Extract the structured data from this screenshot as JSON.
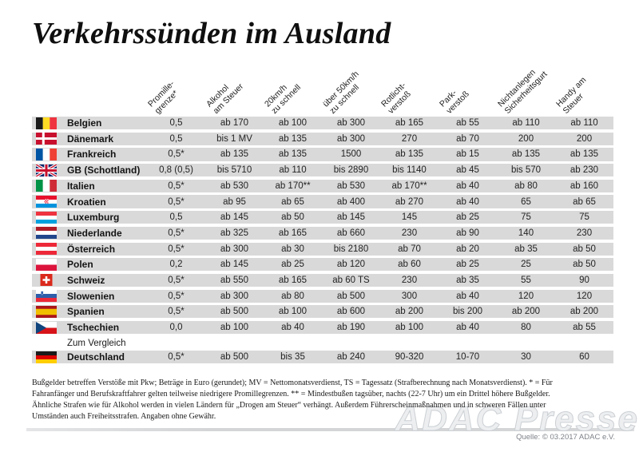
{
  "title": "Verkehrssünden im Ausland",
  "table": {
    "columns": [
      {
        "id": "promillegrenze",
        "lines": [
          "Promille-",
          "grenze*"
        ]
      },
      {
        "id": "alkohol-am-steuer",
        "lines": [
          "Alkohol",
          "am Steuer"
        ]
      },
      {
        "id": "20kmh-zu-schnell",
        "lines": [
          "20km/h",
          "zu schnell"
        ]
      },
      {
        "id": "ueber-50kmh-zu-schnell",
        "lines": [
          "über 50km/h",
          "zu schnell"
        ]
      },
      {
        "id": "rotlichtverstoss",
        "lines": [
          "Rotlicht-",
          "verstoß"
        ]
      },
      {
        "id": "parkverstoss",
        "lines": [
          "Park-",
          "verstoß"
        ]
      },
      {
        "id": "nichtanlegen-sicherheitsgurt",
        "lines": [
          "Nichtanlegen",
          "Sicherheitsgurt"
        ]
      },
      {
        "id": "handy-am-steuer",
        "lines": [
          "Handy am",
          "Steuer"
        ]
      }
    ],
    "rows": [
      {
        "country": "Belgien",
        "flag": "be",
        "values": [
          "0,5",
          "ab 170",
          "ab 100",
          "ab 300",
          "ab 165",
          "ab 55",
          "ab 110",
          "ab 110"
        ]
      },
      {
        "country": "Dänemark",
        "flag": "dk",
        "values": [
          "0,5",
          "bis 1 MV",
          "ab 135",
          "ab 300",
          "270",
          "ab 70",
          "200",
          "200"
        ]
      },
      {
        "country": "Frankreich",
        "flag": "fr",
        "values": [
          "0,5*",
          "ab 135",
          "ab 135",
          "1500",
          "ab 135",
          "ab 15",
          "ab 135",
          "ab 135"
        ]
      },
      {
        "country": "GB (Schottland)",
        "flag": "gb",
        "values": [
          "0,8 (0,5)",
          "bis 5710",
          "ab 110",
          "bis 2890",
          "bis 1140",
          "ab 45",
          "bis 570",
          "ab 230"
        ]
      },
      {
        "country": "Italien",
        "flag": "it",
        "values": [
          "0,5*",
          "ab 530",
          "ab 170**",
          "ab 530",
          "ab 170**",
          "ab 40",
          "ab 80",
          "ab 160"
        ]
      },
      {
        "country": "Kroatien",
        "flag": "hr",
        "values": [
          "0,5*",
          "ab 95",
          "ab 65",
          "ab 400",
          "ab 270",
          "ab 40",
          "65",
          "ab 65"
        ]
      },
      {
        "country": "Luxemburg",
        "flag": "lu",
        "values": [
          "0,5",
          "ab 145",
          "ab 50",
          "ab 145",
          "145",
          "ab 25",
          "75",
          "75"
        ]
      },
      {
        "country": "Niederlande",
        "flag": "nl",
        "values": [
          "0,5*",
          "ab 325",
          "ab 165",
          "ab 660",
          "230",
          "ab 90",
          "140",
          "230"
        ]
      },
      {
        "country": "Österreich",
        "flag": "at",
        "values": [
          "0,5*",
          "ab 300",
          "ab 30",
          "bis 2180",
          "ab 70",
          "ab 20",
          "ab 35",
          "ab 50"
        ]
      },
      {
        "country": "Polen",
        "flag": "pl",
        "values": [
          "0,2",
          "ab 145",
          "ab 25",
          "ab 120",
          "ab 60",
          "ab 25",
          "25",
          "ab 50"
        ]
      },
      {
        "country": "Schweiz",
        "flag": "ch",
        "values": [
          "0,5*",
          "ab 550",
          "ab 165",
          "ab 60 TS",
          "230",
          "ab 35",
          "55",
          "90"
        ]
      },
      {
        "country": "Slowenien",
        "flag": "si",
        "values": [
          "0,5*",
          "ab 300",
          "ab 80",
          "ab 500",
          "300",
          "ab 40",
          "120",
          "120"
        ]
      },
      {
        "country": "Spanien",
        "flag": "es",
        "values": [
          "0,5*",
          "ab 500",
          "ab 100",
          "ab 600",
          "ab 200",
          "bis 200",
          "ab 200",
          "ab 200"
        ]
      },
      {
        "country": "Tschechien",
        "flag": "cz",
        "values": [
          "0,0",
          "ab 100",
          "ab 40",
          "ab 190",
          "ab 100",
          "ab 40",
          "80",
          "ab 55"
        ]
      }
    ],
    "compare_label": "Zum Vergleich",
    "compare_row": {
      "country": "Deutschland",
      "flag": "de",
      "values": [
        "0,5*",
        "ab 500",
        "bis 35",
        "ab 240",
        "90-320",
        "10-70",
        "30",
        "60"
      ]
    }
  },
  "footnote": {
    "lines": [
      "Bußgelder betreffen Verstöße mit Pkw; Beträge in Euro (gerundet); MV = Nettomonatsverdienst, TS = Tagessatz (Strafberechnung nach Monatsverdienst). * = Für",
      "Fahranfänger und Berufskraftfahrer gelten teilweise niedrigere Promillegrenzen. ** = Mindestbußen tagsüber, nachts (22-7 Uhr) um ein Drittel höhere Bußgelder.",
      "Ähnliche Strafen wie für Alkohol werden in vielen Ländern für „Drogen am Steuer“ verhängt. Außerdem Führerscheinmaßnahmen und in schweren Fällen unter",
      "Umständen auch Freiheitsstrafen. Angaben ohne Gewähr."
    ]
  },
  "watermark": "ADAC Presse",
  "source": "Quelle: © 03.2017 ADAC e.V.",
  "colors": {
    "row_bg": "#d9d9d9",
    "text": "#1a1a1a",
    "source_text": "#7d8288"
  }
}
